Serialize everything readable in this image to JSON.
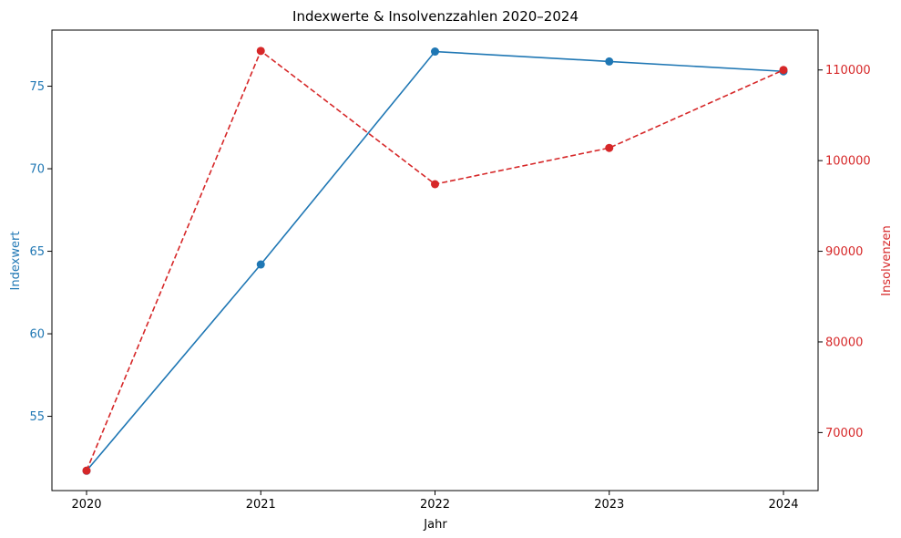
{
  "chart_data": {
    "type": "line",
    "title": "Indexwerte & Insolvenzzahlen 2020–2024",
    "xlabel": "Jahr",
    "x": [
      "2020",
      "2021",
      "2022",
      "2023",
      "2024"
    ],
    "y_left": {
      "label": "Indexwert",
      "ticks": [
        55,
        60,
        65,
        70,
        75
      ],
      "ylim": [
        50.5,
        78.4
      ],
      "color": "#1f77b4"
    },
    "y_right": {
      "label": "Insolvenzen",
      "ticks": [
        70000,
        80000,
        90000,
        100000,
        110000
      ],
      "ylim": [
        63600,
        114400
      ],
      "color": "#d62728"
    },
    "series": [
      {
        "axis": "left",
        "color": "#1f77b4",
        "line_style": "solid",
        "marker": "circle",
        "values": [
          51.7,
          64.2,
          77.1,
          76.5,
          75.9
        ]
      },
      {
        "axis": "right",
        "color": "#d62728",
        "line_style": "dashed",
        "marker": "circle",
        "values": [
          65800,
          112100,
          97400,
          101400,
          110000
        ]
      }
    ],
    "grid": false
  }
}
